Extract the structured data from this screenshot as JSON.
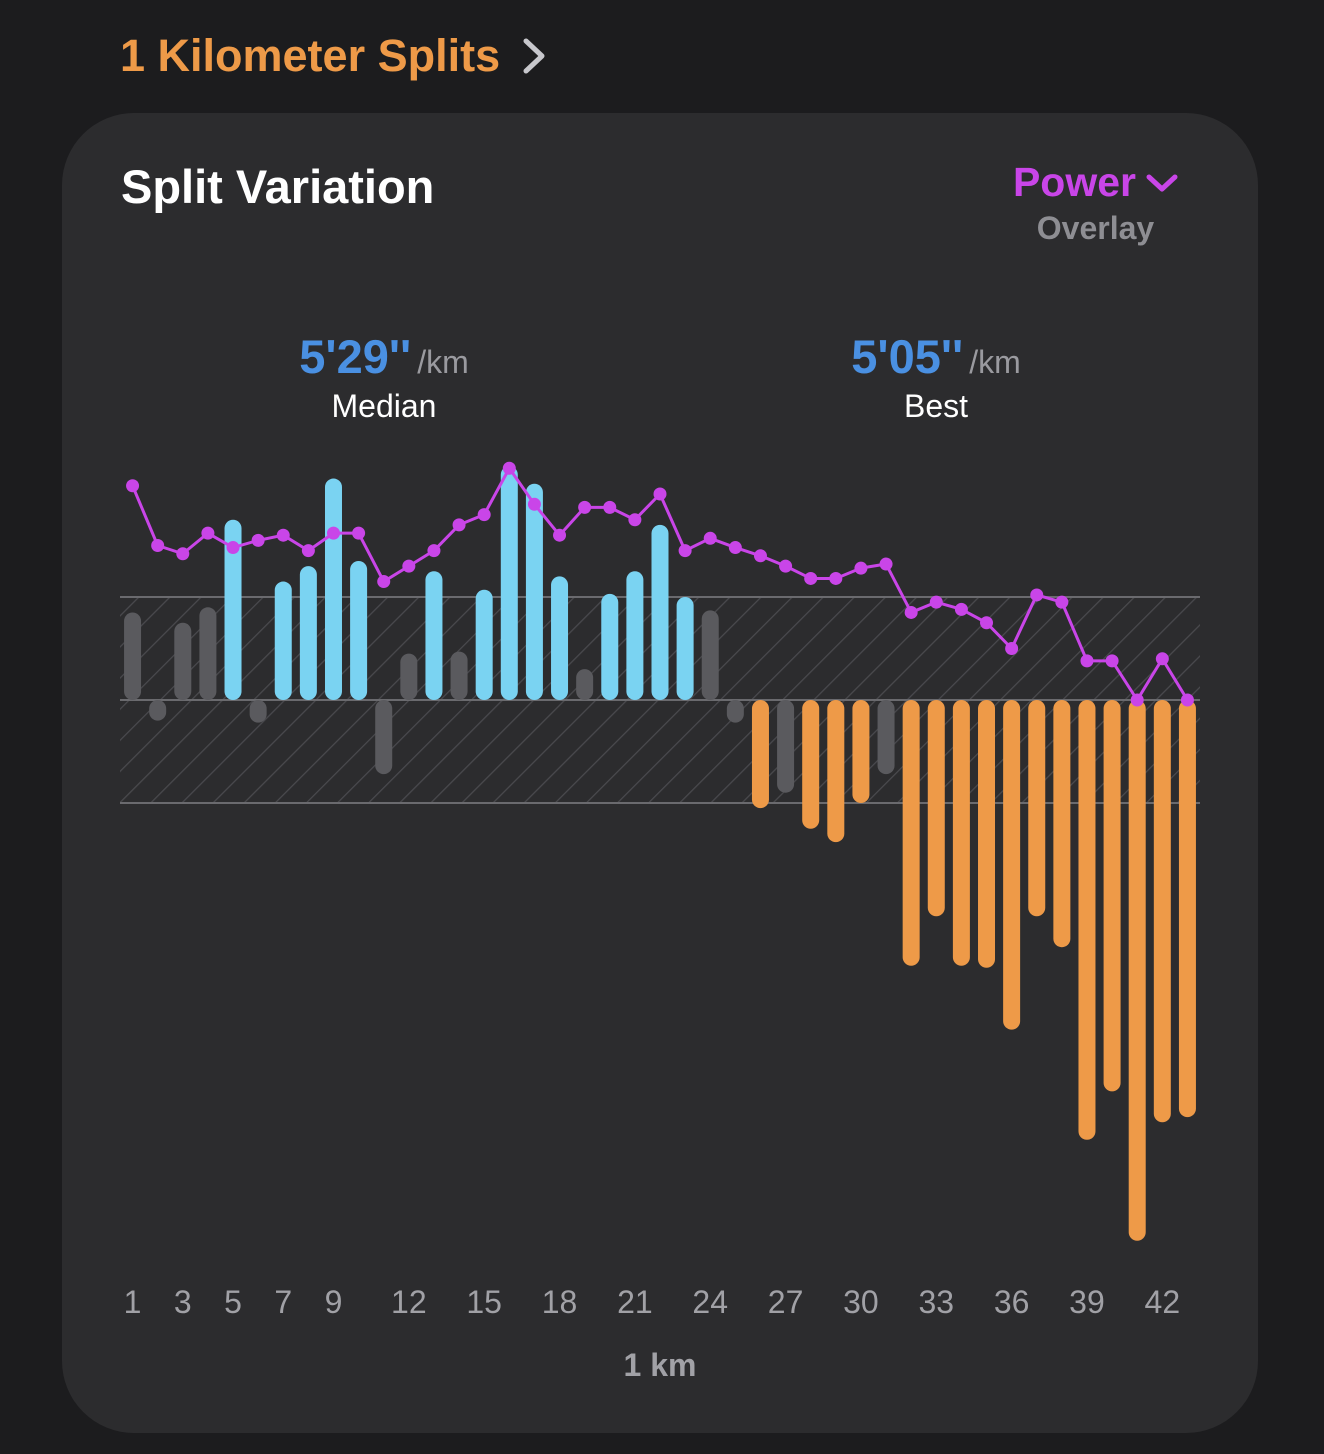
{
  "section": {
    "title": "1 Kilometer Splits"
  },
  "card": {
    "title": "Split Variation",
    "overlay": {
      "value": "Power",
      "caption": "Overlay"
    }
  },
  "stats": {
    "median": {
      "value": "5'29''",
      "unit": "/km",
      "label": "Median"
    },
    "best": {
      "value": "5'05''",
      "unit": "/km",
      "label": "Best"
    }
  },
  "colors": {
    "faster": "#7ad3f2",
    "slower": "#ee9a48",
    "neutral": "#5a5a5e",
    "power": "#c945e8"
  },
  "chart_data": {
    "type": "bar",
    "xlabel": "1 km",
    "x_ticks": [
      1,
      3,
      5,
      7,
      9,
      12,
      15,
      18,
      21,
      24,
      27,
      30,
      33,
      36,
      39,
      42
    ],
    "band": [
      -1,
      1
    ],
    "variation": [
      0.85,
      -0.2,
      0.75,
      0.9,
      1.75,
      -0.22,
      1.15,
      1.3,
      2.15,
      1.35,
      -0.72,
      0.45,
      1.25,
      0.47,
      1.07,
      2.27,
      2.1,
      1.2,
      0.3,
      1.03,
      1.25,
      1.7,
      1.0,
      0.87,
      -0.22,
      -1.05,
      -0.9,
      -1.25,
      -1.38,
      -1.0,
      -0.72,
      -2.58,
      -2.1,
      -2.58,
      -2.6,
      -3.2,
      -2.1,
      -2.4,
      -4.27,
      -3.8,
      -5.25,
      -4.1,
      -4.05
    ],
    "categories": [
      "faster-slight",
      "slower-slight",
      "faster-slight",
      "faster-slight",
      "faster",
      "slower-slight",
      "faster",
      "faster",
      "faster",
      "faster",
      "slower-slight",
      "faster-slight",
      "faster",
      "faster-slight",
      "faster",
      "faster",
      "faster",
      "faster",
      "faster-slight",
      "faster",
      "faster",
      "faster",
      "faster",
      "faster-slight",
      "slower-slight",
      "slower",
      "slower-slight",
      "slower",
      "slower",
      "slower",
      "slower-slight",
      "slower",
      "slower",
      "slower",
      "slower",
      "slower",
      "slower",
      "slower",
      "slower",
      "slower",
      "slower",
      "slower",
      "slower"
    ],
    "power_overlay": [
      2.08,
      1.5,
      1.42,
      1.62,
      1.48,
      1.55,
      1.6,
      1.45,
      1.62,
      1.62,
      1.15,
      1.3,
      1.45,
      1.7,
      1.8,
      2.25,
      1.9,
      1.6,
      1.87,
      1.87,
      1.75,
      2.0,
      1.45,
      1.57,
      1.48,
      1.4,
      1.3,
      1.18,
      1.18,
      1.28,
      1.32,
      0.85,
      0.95,
      0.88,
      0.75,
      0.5,
      1.02,
      0.95,
      0.38,
      0.38,
      0.0,
      0.4,
      0.0
    ]
  }
}
